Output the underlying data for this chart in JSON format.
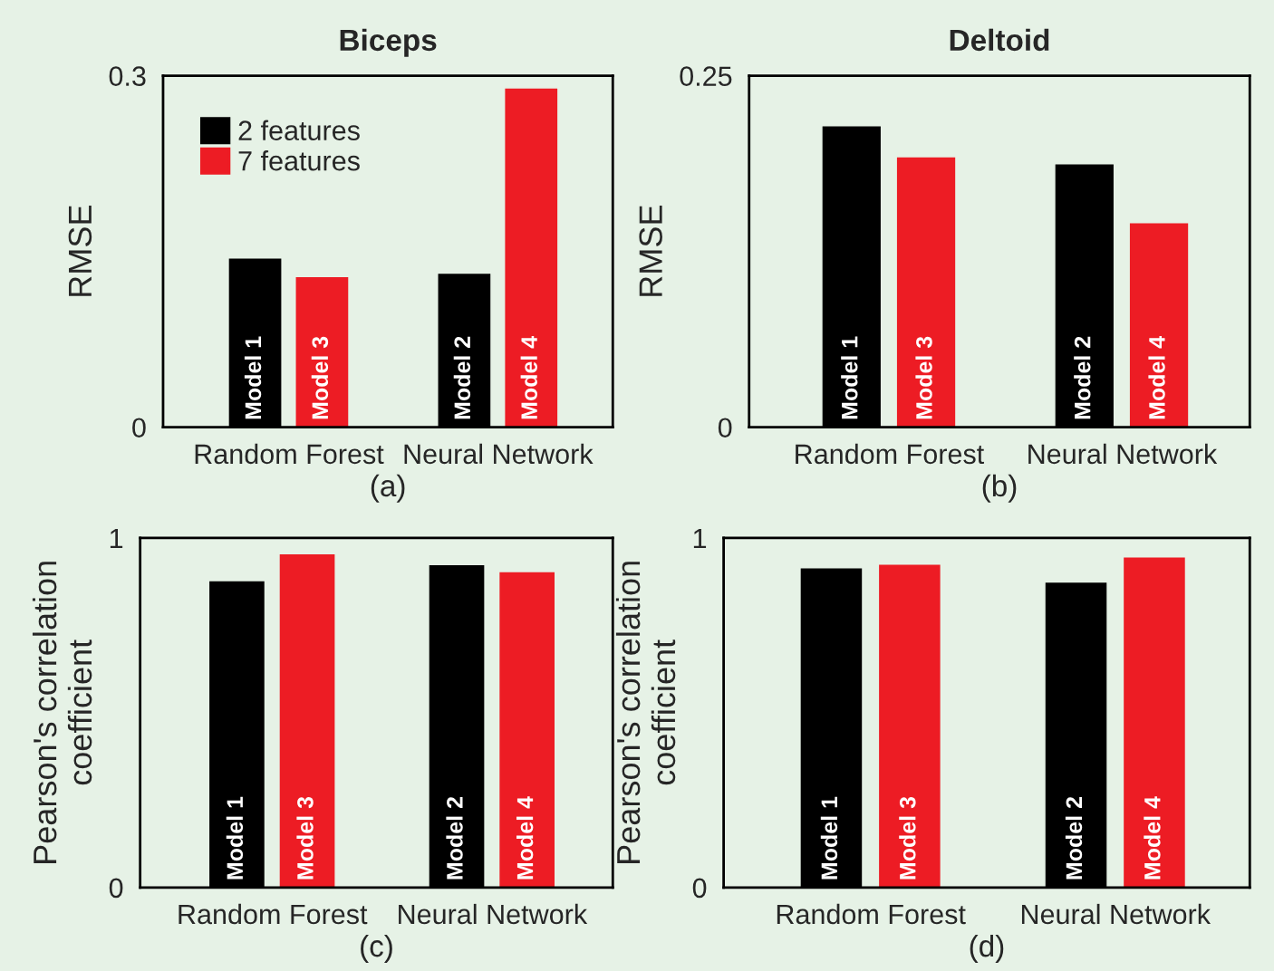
{
  "chart_data": [
    {
      "type": "bar",
      "title": "Biceps",
      "xlabel": "(a)",
      "ylabel": "RMSE",
      "categories": [
        "Random Forest",
        "Neural Network"
      ],
      "ylim": [
        0,
        0.3
      ],
      "yticks": [
        0,
        0.3
      ],
      "grid": false,
      "legend": "top left",
      "series": [
        {
          "name": "2 features",
          "color": "#000000",
          "values": [
            0.144,
            0.131
          ],
          "value_labels": [
            "Model 1",
            "Model 2"
          ]
        },
        {
          "name": "7 features",
          "color": "#ed1c24",
          "values": [
            0.128,
            0.289
          ],
          "value_labels": [
            "Model 3",
            "Model 4"
          ]
        }
      ]
    },
    {
      "type": "bar",
      "title": "Deltoid",
      "xlabel": "(b)",
      "ylabel": "RMSE",
      "categories": [
        "Random Forest",
        "Neural Network"
      ],
      "ylim": [
        0,
        0.25
      ],
      "yticks": [
        0,
        0.25
      ],
      "grid": false,
      "series": [
        {
          "color": "#000000",
          "values": [
            0.214,
            0.187
          ],
          "value_labels": [
            "Model 1",
            "Model 2"
          ]
        },
        {
          "color": "#ed1c24",
          "values": [
            0.192,
            0.145
          ],
          "value_labels": [
            "Model 3",
            "Model 4"
          ]
        }
      ]
    },
    {
      "type": "bar",
      "xlabel": "(c)",
      "ylabel": "Pearson's correlation\ncoefficient",
      "categories": [
        "Random Forest",
        "Neural Network"
      ],
      "ylim": [
        0,
        1
      ],
      "yticks": [
        0,
        1
      ],
      "grid": false,
      "series": [
        {
          "color": "#000000",
          "values": [
            0.876,
            0.922
          ],
          "value_labels": [
            "Model 1",
            "Model 2"
          ]
        },
        {
          "color": "#ed1c24",
          "values": [
            0.953,
            0.902
          ],
          "value_labels": [
            "Model 3",
            "Model 4"
          ]
        }
      ]
    },
    {
      "type": "bar",
      "xlabel": "(d)",
      "ylabel": "Pearson's correlation\ncoefficient",
      "categories": [
        "Random Forest",
        "Neural Network"
      ],
      "ylim": [
        0,
        1
      ],
      "yticks": [
        0,
        1
      ],
      "grid": false,
      "series": [
        {
          "color": "#000000",
          "values": [
            0.913,
            0.872
          ],
          "value_labels": [
            "Model 1",
            "Model 2"
          ]
        },
        {
          "color": "#ed1c24",
          "values": [
            0.923,
            0.944
          ],
          "value_labels": [
            "Model 3",
            "Model 4"
          ]
        }
      ]
    }
  ]
}
